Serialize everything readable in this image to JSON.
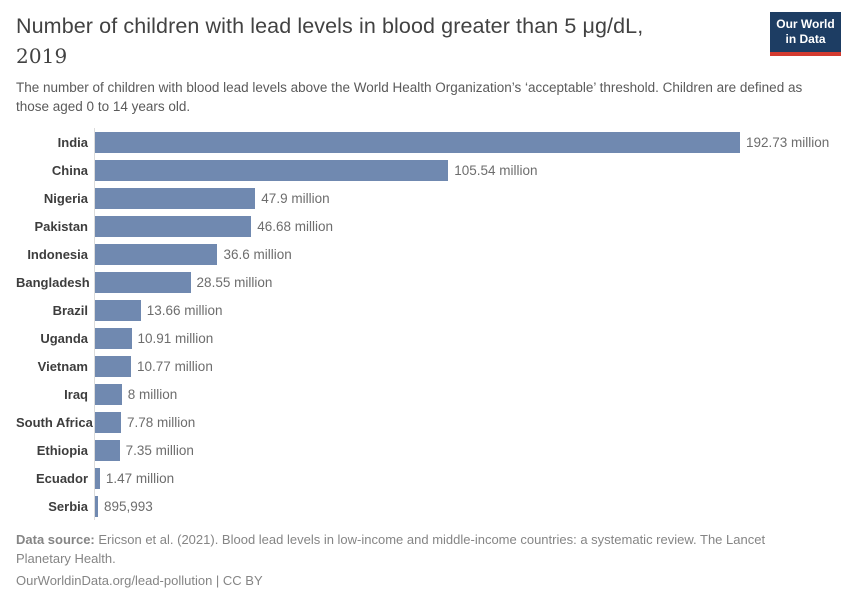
{
  "header": {
    "title_main": "Number of children with lead levels in blood greater than 5 μg/dL,",
    "title_year": "2019",
    "subtitle": "The number of children with blood lead levels above the World Health Organization’s ‘acceptable’ threshold. Children are defined as those aged 0 to 14 years old.",
    "logo_line1": "Our World",
    "logo_line2": "in Data"
  },
  "chart_data": {
    "type": "bar",
    "orientation": "horizontal",
    "title": "Number of children with lead levels in blood greater than 5 μg/dL, 2019",
    "categories": [
      "India",
      "China",
      "Nigeria",
      "Pakistan",
      "Indonesia",
      "Bangladesh",
      "Brazil",
      "Uganda",
      "Vietnam",
      "Iraq",
      "South Africa",
      "Ethiopia",
      "Ecuador",
      "Serbia"
    ],
    "values": [
      192730000,
      105540000,
      47900000,
      46680000,
      36600000,
      28550000,
      13660000,
      10910000,
      10770000,
      8000000,
      7780000,
      7350000,
      1470000,
      895993
    ],
    "value_labels": [
      "192.73 million",
      "105.54 million",
      "47.9 million",
      "46.68 million",
      "36.6 million",
      "28.55 million",
      "13.66 million",
      "10.91 million",
      "10.77 million",
      "8 million",
      "7.78 million",
      "7.35 million",
      "1.47 million",
      "895,993"
    ],
    "xlim": [
      0,
      192730000
    ],
    "grid": false,
    "legend": "none",
    "bar_color": "#7089b0"
  },
  "footer": {
    "source_label": "Data source:",
    "source_text": " Ericson et al. (2021). Blood lead levels in low-income and middle-income countries: a systematic review. The Lancet Planetary Health.",
    "link_text": "OurWorldinData.org/lead-pollution | CC BY"
  },
  "colors": {
    "bar": "#7089b0",
    "axis_line": "#dcdcdc",
    "logo_navy": "#1d3d63",
    "logo_red": "#d43b30"
  }
}
